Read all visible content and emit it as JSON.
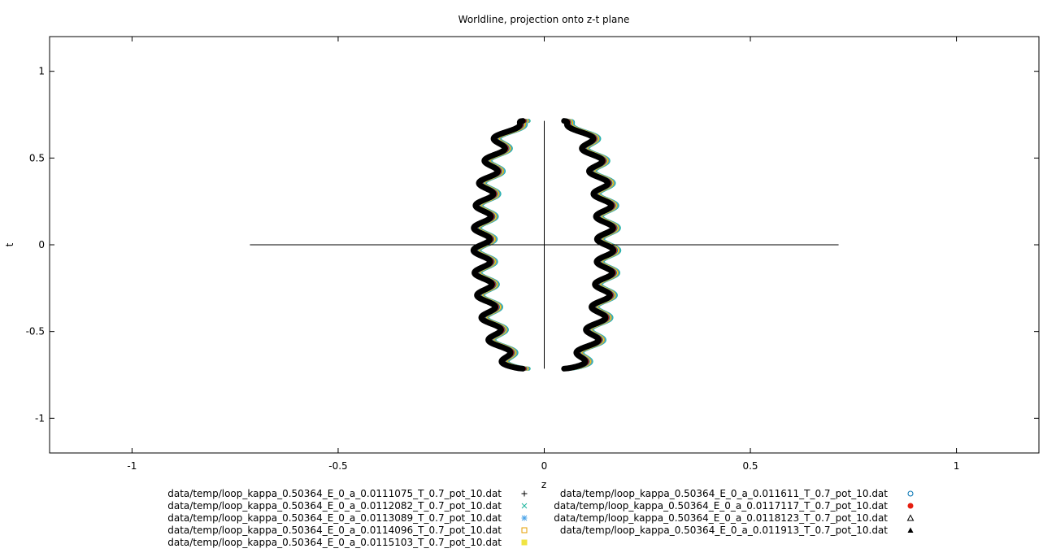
{
  "chart_data": {
    "type": "line",
    "title": "Worldline, projection onto z-t plane",
    "xlabel": "z",
    "ylabel": "t",
    "xlim": [
      -1.2,
      1.2
    ],
    "ylim": [
      -1.2,
      1.2
    ],
    "xticks": [
      -1,
      -0.5,
      0,
      0.5,
      1
    ],
    "yticks": [
      -1,
      -0.5,
      0,
      0.5,
      1
    ],
    "xtick_labels": [
      "-1",
      "-0.5",
      "0",
      "0.5",
      "1"
    ],
    "ytick_labels": [
      "-1",
      "-0.5",
      "0",
      "0.5",
      "1"
    ],
    "grid": false,
    "legend_position": "bottom",
    "axes_lines": {
      "z_axis": {
        "x": [
          -0.714,
          0.714
        ],
        "y": [
          0,
          0
        ]
      },
      "t_axis": {
        "x": [
          0,
          0
        ],
        "y": [
          -0.714,
          0.714
        ]
      }
    },
    "curve_params": {
      "t_range": [
        -0.714,
        0.714
      ],
      "z_base": 0.05,
      "z_bulge": 0.1,
      "wiggle_amplitude": 0.02,
      "wiggle_cycles": 11
    },
    "series": [
      {
        "name": "data/temp/loop_kappa_0.50364_E_0_a_0.0111075_T_0.7_pot_10.dat",
        "marker": "plus",
        "color": "#000000",
        "offset": 0.0
      },
      {
        "name": "data/temp/loop_kappa_0.50364_E_0_a_0.0112082_T_0.7_pot_10.dat",
        "marker": "cross",
        "color": "#1cb49c",
        "offset": 0.012
      },
      {
        "name": "data/temp/loop_kappa_0.50364_E_0_a_0.0113089_T_0.7_pot_10.dat",
        "marker": "asterisk",
        "color": "#4aa3e8",
        "offset": 0.01
      },
      {
        "name": "data/temp/loop_kappa_0.50364_E_0_a_0.0114096_T_0.7_pot_10.dat",
        "marker": "open-square",
        "color": "#e69f00",
        "offset": 0.008
      },
      {
        "name": "data/temp/loop_kappa_0.50364_E_0_a_0.0115103_T_0.7_pot_10.dat",
        "marker": "filled-square",
        "color": "#f0e442",
        "offset": 0.006
      },
      {
        "name": "data/temp/loop_kappa_0.50364_E_0_a_0.011611_T_0.7_pot_10.dat",
        "marker": "open-circle",
        "color": "#0072b2",
        "offset": 0.004
      },
      {
        "name": "data/temp/loop_kappa_0.50364_E_0_a_0.0117117_T_0.7_pot_10.dat",
        "marker": "filled-circle",
        "color": "#e51e10",
        "offset": 0.002
      },
      {
        "name": "data/temp/loop_kappa_0.50364_E_0_a_0.0118123_T_0.7_pot_10.dat",
        "marker": "open-triangle",
        "color": "#000000",
        "offset": 0.0
      },
      {
        "name": "data/temp/loop_kappa_0.50364_E_0_a_0.011913_T_0.7_pot_10.dat",
        "marker": "filled-triangle",
        "color": "#000000",
        "offset": -0.002
      }
    ]
  }
}
